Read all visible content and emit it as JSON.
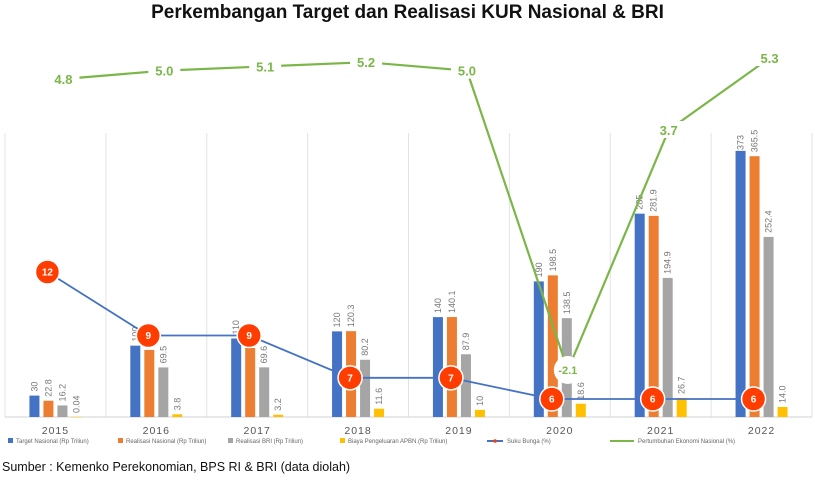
{
  "chart_data": {
    "type": "bar",
    "title": "Perkembangan Target dan Realisasi KUR Nasional & BRI",
    "categories": [
      "2015",
      "2016",
      "2017",
      "2018",
      "2019",
      "2020",
      "2021",
      "2022"
    ],
    "series": [
      {
        "name": "Target Nasional (Rp Triliun)",
        "type": "bar",
        "color": "#4472c4",
        "values": [
          30,
          100,
          110,
          120,
          140,
          190,
          285,
          373
        ],
        "labels": [
          "30",
          "100",
          "110",
          "120",
          "140",
          "190",
          "285",
          "373"
        ]
      },
      {
        "name": "Realisasi Nasional (Rp Triliun)",
        "type": "bar",
        "color": "#ed7d31",
        "values": [
          22.8,
          94.0,
          96.7,
          120.3,
          140.1,
          198.5,
          281.9,
          365.5
        ],
        "labels": [
          "22.8",
          "94.0",
          "96.7",
          "120.3",
          "140.1",
          "198.5",
          "281.9",
          "365.5"
        ]
      },
      {
        "name": "Realisasi BRI (Rp Triliun)",
        "type": "bar",
        "color": "#a5a5a5",
        "values": [
          16.2,
          69.5,
          69.6,
          80.2,
          87.9,
          138.5,
          194.9,
          252.4
        ],
        "labels": [
          "16.2",
          "69.5",
          "69.6",
          "80.2",
          "87.9",
          "138.5",
          "194.9",
          "252.4"
        ]
      },
      {
        "name": "Biaya Pengeluaran APBN (Rp Triliun)",
        "type": "bar",
        "color": "#ffc000",
        "values": [
          0.04,
          3.8,
          3.2,
          11.6,
          10,
          18.6,
          26.7,
          14.0
        ],
        "labels": [
          "0.04",
          "3.8",
          "3.2",
          "11.6",
          "10",
          "18.6",
          "26.7",
          "14.0"
        ]
      },
      {
        "name": "Suku Bunga (%)",
        "type": "line",
        "color": "#4472c4",
        "marker_color": "#ff3d00",
        "values": [
          12,
          9,
          9,
          7,
          7,
          6,
          6,
          6
        ],
        "labels": [
          "12",
          "9",
          "9",
          "7",
          "7",
          "6",
          "6",
          "6"
        ]
      },
      {
        "name": "Pertumbuhan Ekonomi Nasional (%)",
        "type": "line",
        "color": "#7ab648",
        "values": [
          4.8,
          5.0,
          5.1,
          5.2,
          5.0,
          -2.1,
          3.7,
          5.3
        ],
        "labels": [
          "4.8",
          "5.0",
          "5.1",
          "5.2",
          "5.0",
          "-2.1",
          "3.7",
          "5.3"
        ]
      }
    ],
    "bar_ylim": [
      0,
      390
    ],
    "rate_ylim": [
      0,
      20
    ],
    "growth_ylim": [
      -4,
      6
    ],
    "grid": "vertical category dividers",
    "legend_position": "bottom",
    "source_note": "Sumber : Kemenko Perekonomian, BPS RI & BRI (data diolah)"
  }
}
